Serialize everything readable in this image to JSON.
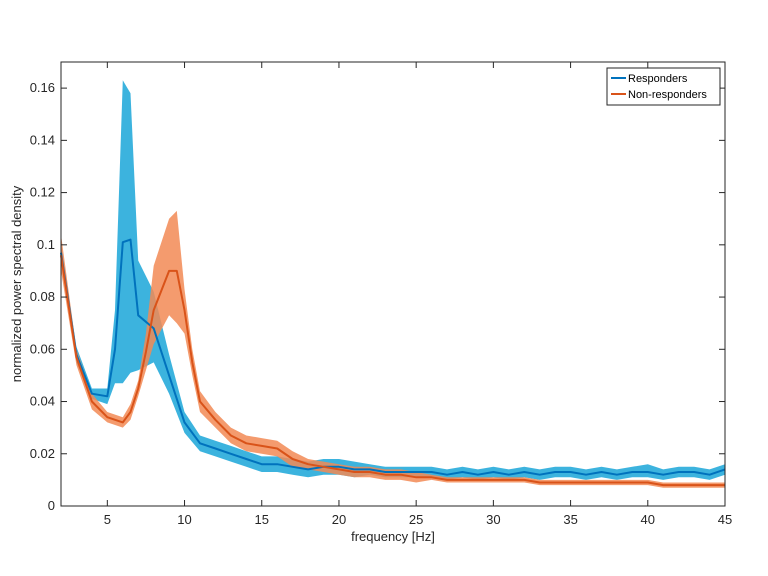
{
  "chart_data": {
    "type": "line",
    "xlabel": "frequency [Hz]",
    "ylabel": "normalized power spectral density",
    "xlim": [
      2,
      45
    ],
    "ylim": [
      0,
      0.17
    ],
    "xticks": [
      5,
      10,
      15,
      20,
      25,
      30,
      35,
      40,
      45
    ],
    "yticks": [
      0,
      0.02,
      0.04,
      0.06,
      0.08,
      0.1,
      0.12,
      0.14,
      0.16
    ],
    "xtick_labels": [
      "5",
      "10",
      "15",
      "20",
      "25",
      "30",
      "35",
      "40",
      "45"
    ],
    "ytick_labels": [
      "0",
      "0.02",
      "0.04",
      "0.06",
      "0.08",
      "0.1",
      "0.12",
      "0.14",
      "0.16"
    ],
    "grid": false,
    "legend_position": "top-right",
    "band": "shaded error band around each mean line",
    "series": [
      {
        "name": "Responders",
        "color": "#0072BD",
        "band_color": "#1AA6D8",
        "x": [
          2,
          3,
          4,
          5,
          5.5,
          6,
          6.5,
          7,
          8,
          9,
          10,
          11,
          12,
          13,
          14,
          15,
          16,
          17,
          18,
          19,
          20,
          21,
          22,
          23,
          24,
          25,
          26,
          27,
          28,
          29,
          30,
          31,
          32,
          33,
          34,
          35,
          36,
          37,
          38,
          39,
          40,
          41,
          42,
          43,
          44,
          45
        ],
        "mean": [
          0.097,
          0.058,
          0.043,
          0.042,
          0.06,
          0.101,
          0.102,
          0.073,
          0.068,
          0.05,
          0.032,
          0.024,
          0.022,
          0.02,
          0.018,
          0.016,
          0.016,
          0.015,
          0.014,
          0.015,
          0.015,
          0.014,
          0.014,
          0.013,
          0.013,
          0.013,
          0.013,
          0.012,
          0.013,
          0.012,
          0.013,
          0.012,
          0.013,
          0.012,
          0.013,
          0.013,
          0.012,
          0.013,
          0.012,
          0.013,
          0.013,
          0.012,
          0.013,
          0.013,
          0.012,
          0.014
        ],
        "upper": [
          0.1,
          0.061,
          0.045,
          0.045,
          0.075,
          0.163,
          0.158,
          0.094,
          0.082,
          0.058,
          0.036,
          0.027,
          0.025,
          0.023,
          0.021,
          0.019,
          0.019,
          0.018,
          0.017,
          0.018,
          0.018,
          0.017,
          0.016,
          0.015,
          0.015,
          0.015,
          0.015,
          0.014,
          0.015,
          0.014,
          0.015,
          0.014,
          0.015,
          0.014,
          0.015,
          0.015,
          0.014,
          0.015,
          0.014,
          0.015,
          0.016,
          0.014,
          0.015,
          0.015,
          0.014,
          0.016
        ],
        "lower": [
          0.094,
          0.055,
          0.041,
          0.039,
          0.047,
          0.047,
          0.051,
          0.052,
          0.055,
          0.043,
          0.028,
          0.021,
          0.019,
          0.017,
          0.015,
          0.013,
          0.013,
          0.012,
          0.011,
          0.012,
          0.012,
          0.011,
          0.012,
          0.011,
          0.011,
          0.011,
          0.011,
          0.01,
          0.011,
          0.01,
          0.011,
          0.01,
          0.011,
          0.01,
          0.011,
          0.011,
          0.01,
          0.011,
          0.01,
          0.011,
          0.011,
          0.01,
          0.011,
          0.011,
          0.01,
          0.012
        ]
      },
      {
        "name": "Non-responders",
        "color": "#D95319",
        "band_color": "#F28A55",
        "x": [
          2,
          3,
          4,
          5,
          6,
          6.5,
          7,
          7.5,
          8,
          9,
          9.5,
          10,
          10.5,
          11,
          12,
          13,
          14,
          15,
          16,
          17,
          18,
          19,
          20,
          21,
          22,
          23,
          24,
          25,
          26,
          27,
          28,
          29,
          30,
          31,
          32,
          33,
          34,
          35,
          36,
          37,
          38,
          39,
          40,
          41,
          42,
          43,
          44,
          45
        ],
        "mean": [
          0.096,
          0.057,
          0.04,
          0.034,
          0.032,
          0.036,
          0.045,
          0.059,
          0.075,
          0.09,
          0.09,
          0.075,
          0.055,
          0.04,
          0.033,
          0.027,
          0.024,
          0.023,
          0.022,
          0.018,
          0.016,
          0.015,
          0.014,
          0.013,
          0.013,
          0.012,
          0.012,
          0.011,
          0.011,
          0.01,
          0.01,
          0.01,
          0.01,
          0.01,
          0.01,
          0.009,
          0.009,
          0.009,
          0.009,
          0.009,
          0.009,
          0.009,
          0.009,
          0.008,
          0.008,
          0.008,
          0.008,
          0.008
        ],
        "upper": [
          0.104,
          0.06,
          0.043,
          0.036,
          0.034,
          0.039,
          0.048,
          0.066,
          0.092,
          0.11,
          0.113,
          0.083,
          0.06,
          0.044,
          0.036,
          0.03,
          0.027,
          0.026,
          0.025,
          0.021,
          0.018,
          0.017,
          0.016,
          0.015,
          0.015,
          0.014,
          0.014,
          0.013,
          0.012,
          0.011,
          0.011,
          0.011,
          0.011,
          0.011,
          0.011,
          0.01,
          0.01,
          0.01,
          0.01,
          0.01,
          0.01,
          0.01,
          0.01,
          0.009,
          0.009,
          0.009,
          0.009,
          0.009
        ],
        "lower": [
          0.09,
          0.054,
          0.037,
          0.032,
          0.03,
          0.033,
          0.042,
          0.052,
          0.062,
          0.073,
          0.07,
          0.066,
          0.05,
          0.036,
          0.03,
          0.024,
          0.021,
          0.02,
          0.019,
          0.015,
          0.014,
          0.013,
          0.012,
          0.011,
          0.011,
          0.01,
          0.01,
          0.009,
          0.01,
          0.009,
          0.009,
          0.009,
          0.009,
          0.009,
          0.009,
          0.008,
          0.008,
          0.008,
          0.008,
          0.008,
          0.008,
          0.008,
          0.008,
          0.007,
          0.007,
          0.007,
          0.007,
          0.007
        ]
      }
    ]
  }
}
